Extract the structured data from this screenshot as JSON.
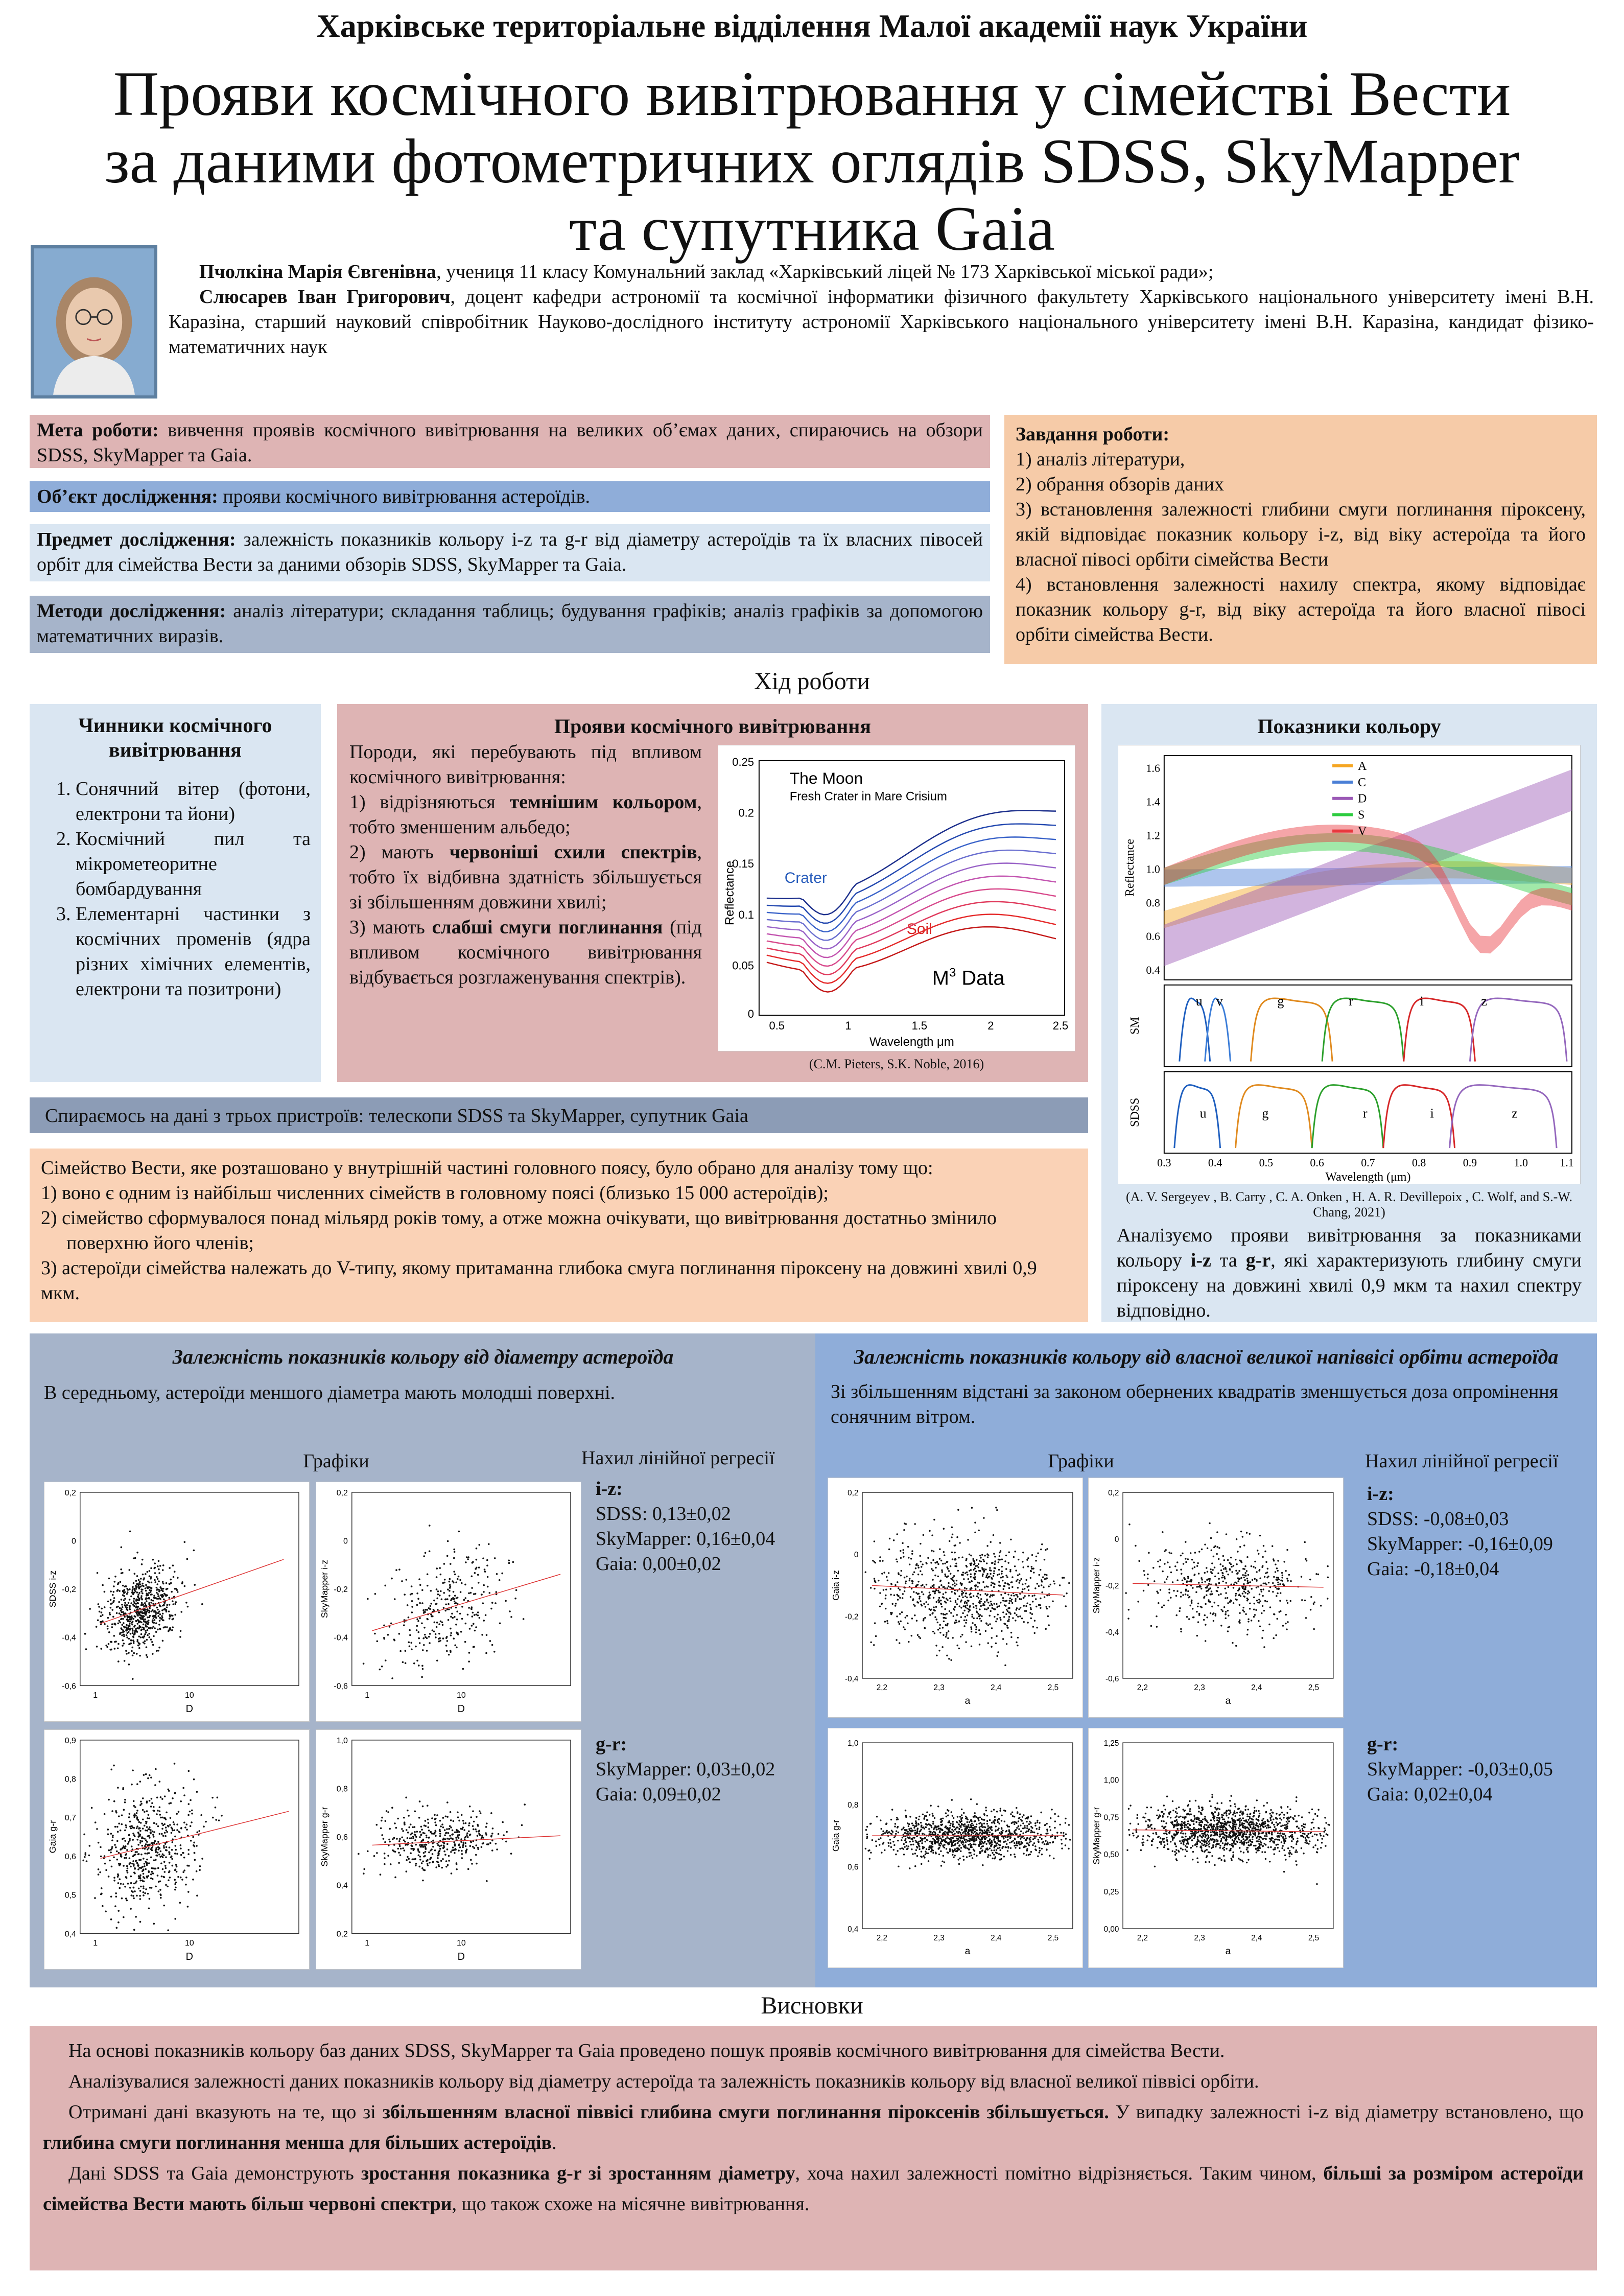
{
  "header": {
    "org": "Харківське територіальне відділення Малої академії наук України",
    "title_lines": [
      "Прояви космічного вивітрювання у сімействі Вести",
      "за даними фотометричних оглядів SDSS, SkyMapper",
      "та супутника Gaia"
    ]
  },
  "authors": {
    "a1_name": "Пчолкіна Марія Євгенівна",
    "a1_rest": ", учениця 11 класу Комунальний заклад «Харківський ліцей № 173 Харківської міської ради»;",
    "a2_name": "Слюсарев Іван Григорович",
    "a2_rest": ", доцент кафедри астрономії та космічної інформатики фізичного факультету Харківського національного університету імені В.Н. Каразіна, старший науковий співробітник Науково-дослідного інституту астрономії Харківського національного університету імені  В.Н. Каразіна, кандидат фізико-математичних наук"
  },
  "intro": {
    "goal_label": "Мета роботи:",
    "goal_text": " вивчення проявів космічного вивітрювання на великих об’ємах даних, спираючись на обзори SDSS, SkyMapper та Gaia.",
    "object_label": "Об’єкт дослідження:",
    "object_text": " прояви космічного вивітрювання астероїдів.",
    "subject_label": "Предмет дослідження:",
    "subject_text": " залежність показників кольору i-z та g-r від діаметру астероїдів та їх власних півосей орбіт для сімейства Вести за даними обзорів SDSS, SkyMapper та Gaia.",
    "methods_label": "Методи дослідження:",
    "methods_text": " аналіз літератури; складання таблиць; будування графіків; аналіз графіків за допомогою математичних виразів.",
    "tasks_label": "Завдання роботи:",
    "tasks": [
      "1) аналіз літератури,",
      "2) обрання обзорів даних",
      "3) встановлення залежності глибини смуги поглинання піроксену, якій відповідає показник кольору i-z, від віку астероїда та його власної півосі орбіти сімейства Вести",
      "4) встановлення залежності нахилу спектра, якому відповідає показник кольору g-r, від віку астероїда та його власної півосі орбіти сімейства Вести."
    ]
  },
  "progress_title": "Хід роботи",
  "factors": {
    "title": "Чинники космічного вивітрювання",
    "items": [
      "Сонячний вітер (фотони, електрони та йони)",
      "Космічний пил та мікрометеоритне бомбардування",
      "Елементарні частинки з космічних променів (ядра різних хімічних елементів, електрони та позитрони)"
    ]
  },
  "manifest": {
    "title": "Прояви космічного вивітрювання",
    "p0": "Породи, які перебувають під впливом космічного вивітрювання:",
    "l1_pre": "1) відрізняються ",
    "l1_b": "темнішим кольором",
    "l1_post": ", тобто зменшеним альбедо;",
    "l2_pre": "2) мають ",
    "l2_b": "червоніші схили спектрів",
    "l2_post": ", тобто їх відбивна здатність збільшується зі збільшенням довжини хвилі;",
    "l3_pre": "3) мають ",
    "l3_b": "слабші смуги поглинання",
    "l3_post": " (під впливом космічного вивітрювання відбувається розглаженування спектрів).",
    "caption": "(C.M. Pieters, S.K. Noble, 2016)",
    "moon_title": "The Moon",
    "moon_sub": "Fresh Crater in Mare Crisium",
    "crater": "Crater",
    "soil": "Soil",
    "m3": "M",
    "m3_sup": "3",
    "m3_data": " Data",
    "ylabel": "Reflectance",
    "xlabel": "Wavelength μm",
    "yticks": [
      "0.25",
      "0.2",
      "0.15",
      "0.1",
      "0.05",
      "0"
    ],
    "xticks": [
      "0.5",
      "1",
      "1.5",
      "2",
      "2.5"
    ]
  },
  "color_idx": {
    "title": "Показники кольору",
    "legend": [
      "A",
      "C",
      "D",
      "S",
      "V"
    ],
    "legend_colors": [
      "#f5a623",
      "#4a7fd6",
      "#9b59b6",
      "#2ecc40",
      "#e8383d"
    ],
    "ylabel": "Reflectance",
    "yticks": [
      "1.6",
      "1.4",
      "1.2",
      "1.0",
      "0.8",
      "0.6",
      "0.4"
    ],
    "sm_label": "SM",
    "sdss_label": "SDSS",
    "sm_bands": [
      "u",
      "v",
      "g",
      "r",
      "i",
      "z"
    ],
    "sdss_bands": [
      "u",
      "g",
      "r",
      "i",
      "z"
    ],
    "xticks": [
      "0.3",
      "0.4",
      "0.5",
      "0.6",
      "0.7",
      "0.8",
      "0.9",
      "1.0",
      "1.1"
    ],
    "xlabel": "Wavelength (μm)",
    "caption": "(A. V. Sergeyev , B. Carry , C. A. Onken , H. A. R. Devillepoix , C. Wolf, and S.-W. Chang, 2021)",
    "text_pre": "Аналізуємо прояви вивітрювання за показниками кольору ",
    "text_b1": "i-z",
    "text_mid": " та ",
    "text_b2": "g-r",
    "text_post": ", які характеризують глибину смуги піроксену на довжині хвилі 0,9 мкм та нахил спектру відповідно."
  },
  "data_sources": "Спираємось на дані з трьох пристроїв: телескопи SDSS та SkyMapper, супутник Gaia",
  "vesta": {
    "intro": "Сімейство Вести, яке розташовано у внутрішній частині головного поясу, було обрано для аналізу тому що:",
    "items": [
      "1)  воно є одним із найбільш численних сімейств в головному поясі (близько 15 000 астероїдів);",
      "2)  сімейство сформувалося понад мільярд років тому, а отже можна очікувати, що вивітрювання достатньо змінило поверхню його членів;",
      "3)  астероїди сімейства належать до V-типу, якому притаманна глибока смуга поглинання піроксену на довжині хвилі 0,9 мкм."
    ]
  },
  "diam": {
    "title": "Залежність показників кольору від діаметру астероїда",
    "text": "В середньому, астероїди меншого діаметра мають молодші поверхні.",
    "graphs": "Графіки",
    "slope_title": "Нахил лінійної регресії",
    "iz_label": "i-z:",
    "iz_values": [
      "SDSS: 0,13±0,02",
      "SkyMapper: 0,16±0,04",
      "Gaia: 0,00±0,02"
    ],
    "gr_label": "g-r:",
    "gr_values": [
      "SkyMapper: 0,03±0,02",
      "Gaia: 0,09±0,02"
    ]
  },
  "axis": {
    "title": "Залежність показників кольору від власної великої напіввісі орбіти астероїда",
    "text": "Зі збільшенням відстані за законом обернених квадратів зменшується доза опромінення сонячним вітром.",
    "graphs": "Графіки",
    "slope_title": "Нахил лінійної регресії",
    "iz_label": "i-z:",
    "iz_values": [
      "SDSS: -0,08±0,03",
      "SkyMapper: -0,16±0,09",
      "Gaia: -0,18±0,04"
    ],
    "gr_label": "g-r:",
    "gr_values": [
      "SkyMapper: -0,03±0,05",
      "Gaia: 0,02±0,04"
    ]
  },
  "plots": {
    "d_iz_sdss": {
      "ylabel": "SDSS i-z",
      "xlabel": "D",
      "yticks": [
        "0,2",
        "0",
        "-0,2",
        "-0,4",
        "-0,6"
      ],
      "xticks": [
        "1",
        "10"
      ]
    },
    "d_iz_sky": {
      "ylabel": "SkyMapper i-z",
      "xlabel": "D",
      "yticks": [
        "0,2",
        "0",
        "-0,2",
        "-0,4",
        "-0,6"
      ],
      "xticks": [
        "1",
        "10"
      ]
    },
    "d_gr_gaia": {
      "ylabel": "Gaia g-r",
      "xlabel": "D",
      "yticks": [
        "0,9",
        "0,8",
        "0,7",
        "0,6",
        "0,5",
        "0,4"
      ],
      "xticks": [
        "1",
        "10"
      ]
    },
    "d_gr_sky": {
      "ylabel": "SkyMapper g-r",
      "xlabel": "D",
      "yticks": [
        "1,0",
        "0,8",
        "0,6",
        "0,4",
        "0,2"
      ],
      "xticks": [
        "1",
        "10"
      ]
    },
    "a_iz_gaia": {
      "ylabel": "Gaia i-z",
      "xlabel": "a",
      "yticks": [
        "0,2",
        "0",
        "-0,2",
        "-0,4"
      ],
      "xticks": [
        "2,2",
        "2,3",
        "2,4",
        "2,5"
      ]
    },
    "a_iz_sky": {
      "ylabel": "SkyMapper i-z",
      "xlabel": "a",
      "yticks": [
        "0,2",
        "0",
        "-0,2",
        "-0,4",
        "-0,6"
      ],
      "xticks": [
        "2,2",
        "2,3",
        "2,4",
        "2,5"
      ]
    },
    "a_gr_gaia": {
      "ylabel": "Gaia g-r",
      "xlabel": "a",
      "yticks": [
        "1,0",
        "0,8",
        "0,6",
        "0,4"
      ],
      "xticks": [
        "2,2",
        "2,3",
        "2,4",
        "2,5"
      ]
    },
    "a_gr_sky": {
      "ylabel": "SkyMapper g-r",
      "xlabel": "a",
      "yticks": [
        "1,25",
        "1,00",
        "0,75",
        "0,50",
        "0,25",
        "0,00"
      ],
      "xticks": [
        "2,2",
        "2,3",
        "2,4",
        "2,5"
      ]
    }
  },
  "conclusions": {
    "title": "Висновки",
    "p1": "На основі показників кольору баз даних SDSS, SkyMapper та Gaia проведено пошук проявів космічного вивітрювання для сімейства Вести.",
    "p2": "Аналізувалися залежності даних показників кольору від діаметру астероїда та залежність показників кольору від власної великої піввісі орбіти.",
    "p3_a": "Отримані дані вказують на те, що зі ",
    "p3_b": "збільшенням власної піввісі глибина смуги поглинання піроксенів збільшується.",
    "p3_c": " У випадку залежності i-z від діаметру встановлено, що ",
    "p3_d": "глибина смуги поглинання менша для більших астероїдів",
    "p3_e": ".",
    "p4_a": "Дані SDSS та Gaia демонструють ",
    "p4_b": "зростання показника g-r зі зростанням діаметру",
    "p4_c": ", хоча нахил залежності помітно відрізняється. Таким чином, ",
    "p4_d": "більші за розміром астероїди сімейства Вести мають більш червоні спектри",
    "p4_e": ", що також схоже на місячне вивітрювання."
  }
}
